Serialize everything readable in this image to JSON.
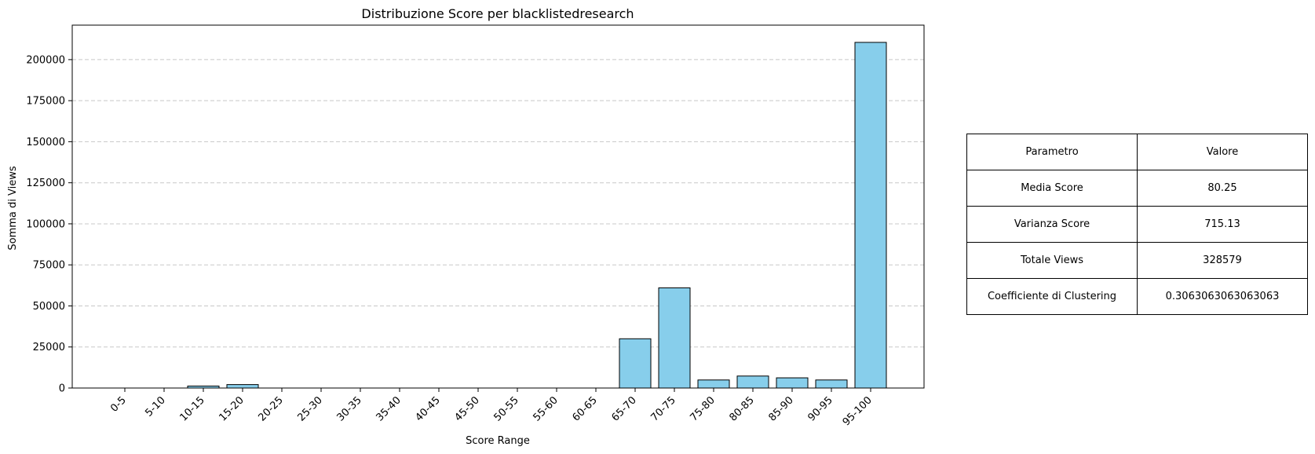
{
  "chart_data": {
    "type": "bar",
    "title": "Distribuzione Score per blacklistedresearch",
    "xlabel": "Score Range",
    "ylabel": "Somma di Views",
    "categories": [
      "0-5",
      "5-10",
      "10-15",
      "15-20",
      "20-25",
      "25-30",
      "30-35",
      "35-40",
      "40-45",
      "45-50",
      "50-55",
      "55-60",
      "60-65",
      "65-70",
      "70-75",
      "75-80",
      "80-85",
      "85-90",
      "90-95",
      "95-100"
    ],
    "values": [
      0,
      0,
      1200,
      2100,
      0,
      0,
      0,
      0,
      0,
      0,
      0,
      0,
      0,
      30000,
      61000,
      4900,
      7300,
      6200,
      4900,
      210500
    ],
    "ylim": [
      0,
      221000
    ],
    "yticks": [
      0,
      25000,
      50000,
      75000,
      100000,
      125000,
      150000,
      175000,
      200000
    ],
    "grid": "horizontal dashed",
    "colors": {
      "bar": "#87CEEB",
      "edge": "#000000",
      "grid": "#c8c8c8"
    }
  },
  "table": {
    "header": [
      "Parametro",
      "Valore"
    ],
    "rows": [
      [
        "Media Score",
        "80.25"
      ],
      [
        "Varianza Score",
        "715.13"
      ],
      [
        "Totale Views",
        "328579"
      ],
      [
        "Coefficiente di Clustering",
        "0.3063063063063063"
      ]
    ]
  }
}
